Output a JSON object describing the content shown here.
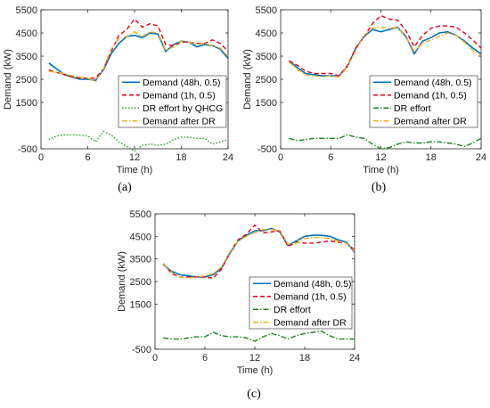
{
  "chart_data": [
    {
      "type": "line",
      "caption": "(a)",
      "xlabel": "Time (h)",
      "ylabel": "Demand (kW)",
      "xlim": [
        0,
        24
      ],
      "ylim": [
        -500,
        5500
      ],
      "xticks": [
        "0",
        "6",
        "12",
        "18",
        "24"
      ],
      "yticks": [
        "-500",
        "1500",
        "2500",
        "3500",
        "4500",
        "5500"
      ],
      "grid": false,
      "legend_position": "right-middle",
      "x": [
        1,
        2,
        3,
        4,
        5,
        6,
        7,
        8,
        9,
        10,
        11,
        12,
        13,
        14,
        15,
        16,
        17,
        18,
        19,
        20,
        21,
        22,
        23,
        24
      ],
      "series": [
        {
          "name": "Demand (48h, 0.5)",
          "color": "#0072BD",
          "dash": "",
          "values": [
            3200,
            2950,
            2700,
            2600,
            2500,
            2500,
            2450,
            2900,
            3600,
            4050,
            4350,
            4400,
            4300,
            4500,
            4450,
            3700,
            4000,
            4150,
            4100,
            3900,
            4000,
            3950,
            3800,
            3400
          ]
        },
        {
          "name": "Demand (1h, 0.5)",
          "color": "#E3001B",
          "dash": "5,3",
          "values": [
            2900,
            2800,
            2700,
            2600,
            2550,
            2550,
            2550,
            2950,
            3700,
            4400,
            4650,
            5100,
            4750,
            4900,
            4800,
            4000,
            3950,
            4100,
            4100,
            4050,
            4050,
            4200,
            4050,
            3700
          ]
        },
        {
          "name": "DR effort by QHCG",
          "color": "#22A022",
          "dash": "1.5,2",
          "values": [
            -100,
            50,
            100,
            100,
            80,
            50,
            -200,
            250,
            100,
            -200,
            -400,
            -600,
            -350,
            -300,
            -350,
            -300,
            -100,
            0,
            0,
            -50,
            -50,
            -300,
            -200,
            -100
          ]
        },
        {
          "name": "Demand after DR",
          "color": "#EDB120",
          "dash": "6,2,1.5,2",
          "values": [
            2850,
            2800,
            2750,
            2650,
            2600,
            2550,
            2400,
            2950,
            3800,
            4250,
            4350,
            4550,
            4350,
            4550,
            4500,
            3750,
            3900,
            4150,
            4100,
            4000,
            4050,
            3950,
            3850,
            3500
          ]
        }
      ]
    },
    {
      "type": "line",
      "caption": "(b)",
      "xlabel": "Time (h)",
      "ylabel": "Demand (kW)",
      "xlim": [
        0,
        24
      ],
      "ylim": [
        -500,
        5500
      ],
      "xticks": [
        "0",
        "6",
        "12",
        "18",
        "24"
      ],
      "yticks": [
        "-500",
        "1500",
        "2500",
        "3500",
        "4500",
        "5500"
      ],
      "grid": false,
      "legend_position": "right-middle",
      "x": [
        1,
        2,
        3,
        4,
        5,
        6,
        7,
        8,
        9,
        10,
        11,
        12,
        13,
        14,
        15,
        16,
        17,
        18,
        19,
        20,
        21,
        22,
        23,
        24
      ],
      "series": [
        {
          "name": "Demand (48h, 0.5)",
          "color": "#0072BD",
          "dash": "",
          "values": [
            3300,
            3000,
            2750,
            2700,
            2650,
            2650,
            2650,
            3050,
            3850,
            4350,
            4650,
            4550,
            4650,
            4750,
            4350,
            3600,
            4150,
            4300,
            4500,
            4550,
            4400,
            4150,
            3850,
            3600
          ]
        },
        {
          "name": "Demand (1h, 0.5)",
          "color": "#E3001B",
          "dash": "5,3",
          "values": [
            3300,
            3100,
            2850,
            2750,
            2750,
            2750,
            2650,
            3100,
            3850,
            4350,
            4900,
            5250,
            5100,
            5050,
            4600,
            3900,
            4400,
            4700,
            4800,
            4800,
            4750,
            4500,
            4200,
            3850
          ]
        },
        {
          "name": "DR effort",
          "color": "#15891A",
          "dash": "6,2,1.5,2",
          "values": [
            -50,
            -150,
            -100,
            -50,
            -50,
            -50,
            -50,
            100,
            0,
            -50,
            -300,
            -500,
            -450,
            -300,
            -200,
            -250,
            -250,
            -200,
            -200,
            -250,
            -300,
            -400,
            -250,
            -50
          ]
        },
        {
          "name": "Demand after DR",
          "color": "#EDB120",
          "dash": "6,2,1.5,2",
          "values": [
            3250,
            2900,
            2700,
            2650,
            2600,
            2650,
            2600,
            3050,
            3750,
            4400,
            4700,
            4750,
            4700,
            4750,
            4300,
            3700,
            4050,
            4200,
            4350,
            4500,
            4400,
            4100,
            3750,
            3550
          ]
        }
      ]
    },
    {
      "type": "line",
      "caption": "(c)",
      "xlabel": "Time (h)",
      "ylabel": "Demand (kW)",
      "xlim": [
        0,
        24
      ],
      "ylim": [
        -500,
        5500
      ],
      "xticks": [
        "0",
        "6",
        "12",
        "18",
        "24"
      ],
      "yticks": [
        "-500",
        "1500",
        "2500",
        "3500",
        "4500",
        "5500"
      ],
      "grid": false,
      "legend_position": "right-middle",
      "x": [
        1,
        2,
        3,
        4,
        5,
        6,
        7,
        8,
        9,
        10,
        11,
        12,
        13,
        14,
        15,
        16,
        17,
        18,
        19,
        20,
        21,
        22,
        23,
        24
      ],
      "series": [
        {
          "name": "Demand (48h, 0.5)",
          "color": "#0072BD",
          "dash": "",
          "values": [
            3250,
            2950,
            2800,
            2750,
            2700,
            2700,
            2800,
            3100,
            3750,
            4300,
            4550,
            4750,
            4750,
            4850,
            4700,
            4100,
            4300,
            4500,
            4550,
            4550,
            4500,
            4350,
            4250,
            3800
          ]
        },
        {
          "name": "Demand (1h, 0.5)",
          "color": "#E3001B",
          "dash": "5,3",
          "values": [
            3300,
            2850,
            2700,
            2700,
            2700,
            2700,
            2650,
            3050,
            3800,
            4350,
            4600,
            5000,
            4650,
            4700,
            4750,
            4050,
            4250,
            4200,
            4200,
            4250,
            4300,
            4250,
            4200,
            3900
          ]
        },
        {
          "name": "DR effort",
          "color": "#15891A",
          "dash": "6,2,1.5,2",
          "values": [
            0,
            -50,
            -50,
            0,
            50,
            50,
            250,
            100,
            50,
            50,
            0,
            -150,
            50,
            200,
            100,
            -50,
            100,
            200,
            250,
            300,
            100,
            -50,
            -50,
            -50
          ]
        },
        {
          "name": "Demand after DR",
          "color": "#EDB120",
          "dash": "6,2,1.5,2",
          "values": [
            3300,
            2900,
            2700,
            2650,
            2700,
            2750,
            2850,
            3150,
            3800,
            4300,
            4500,
            4650,
            4800,
            4800,
            4750,
            4150,
            4200,
            4400,
            4450,
            4450,
            4400,
            4300,
            4200,
            3850
          ]
        }
      ]
    }
  ]
}
